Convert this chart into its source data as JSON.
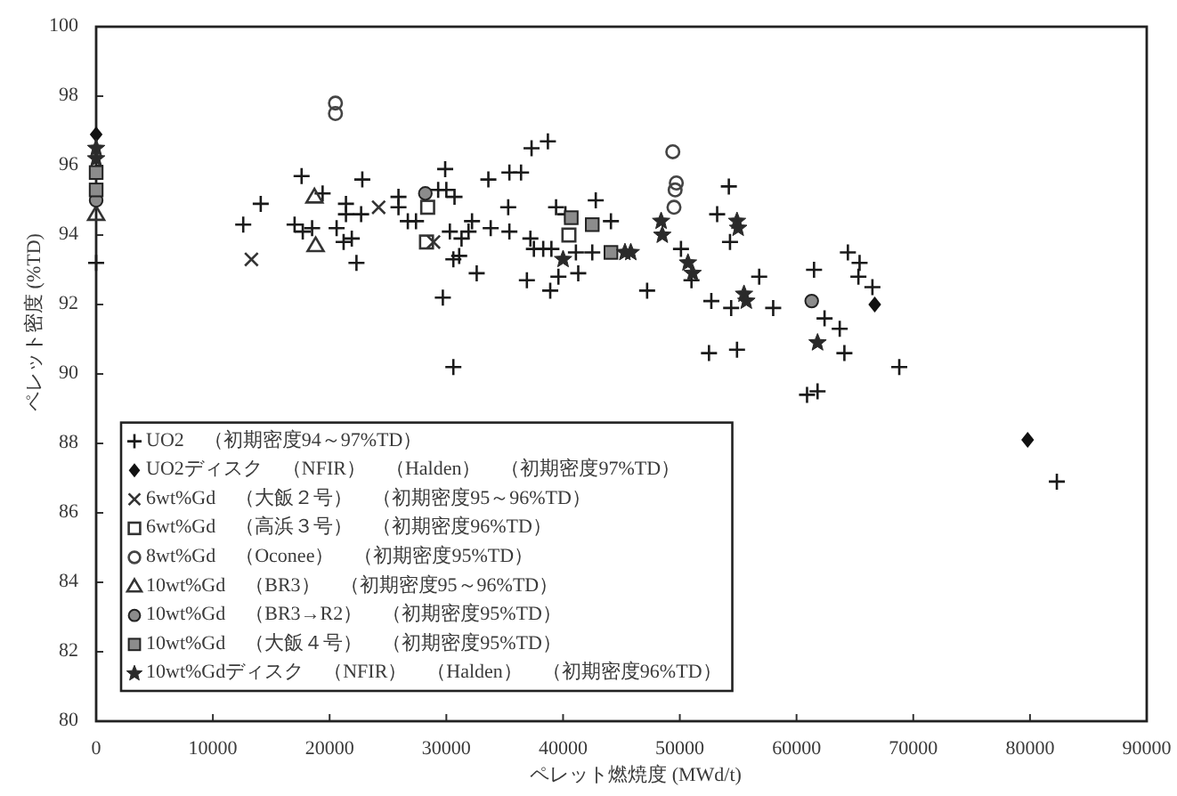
{
  "chart_data": {
    "type": "scatter",
    "xlabel": "ペレット燃焼度 (MWd/t)",
    "ylabel": "ペレット密度 (%TD)",
    "xlim": [
      0,
      90000
    ],
    "ylim": [
      80,
      100
    ],
    "xticks": [
      0,
      10000,
      20000,
      30000,
      40000,
      50000,
      60000,
      70000,
      80000,
      90000
    ],
    "yticks": [
      80,
      82,
      84,
      86,
      88,
      90,
      92,
      94,
      96,
      98,
      100
    ],
    "legend": "bottom left",
    "series": [
      {
        "name": "UO2　（初期密度94～97%TD）",
        "color": "#1a1a1a",
        "marker": "cross",
        "x": [
          0,
          12600,
          14100,
          17600,
          17000,
          17700,
          18500,
          19400,
          20600,
          21200,
          21900,
          21400,
          21400,
          22700,
          22300,
          22800,
          25900,
          25900,
          26700,
          27400,
          29300,
          30000,
          30700,
          29900,
          29700,
          30600,
          30300,
          31300,
          31100,
          30600,
          32200,
          31900,
          32600,
          33800,
          33600,
          35400,
          36400,
          35300,
          35400,
          37300,
          38700,
          37200,
          36900,
          38900,
          39600,
          41300,
          39400,
          42800,
          44100,
          41100,
          42500,
          37500,
          38300,
          39000,
          40200,
          50100,
          54200,
          53200,
          54300,
          47200,
          52700,
          56800,
          54400,
          58000,
          52500,
          54900,
          61500,
          62400,
          63700,
          64100,
          60900,
          61800,
          64400,
          65400,
          65300,
          66500,
          68800,
          82300,
          51000
        ],
        "values": [
          93.2,
          94.3,
          94.9,
          95.7,
          94.3,
          94.1,
          94.2,
          95.2,
          94.2,
          93.8,
          93.9,
          94.9,
          94.6,
          94.6,
          93.2,
          95.6,
          95.1,
          94.8,
          94.4,
          94.4,
          95.3,
          95.3,
          95.1,
          95.9,
          92.2,
          90.2,
          94.1,
          93.9,
          93.4,
          93.3,
          94.4,
          94.1,
          92.9,
          94.2,
          95.6,
          95.8,
          95.8,
          94.8,
          94.1,
          96.5,
          96.7,
          93.9,
          92.7,
          92.4,
          92.8,
          92.9,
          94.8,
          95.0,
          94.4,
          93.5,
          93.5,
          93.6,
          93.6,
          93.6,
          94.6,
          93.6,
          95.4,
          94.6,
          93.8,
          92.4,
          92.1,
          92.8,
          91.9,
          91.9,
          90.6,
          90.7,
          93.0,
          91.6,
          91.3,
          90.6,
          89.4,
          89.5,
          93.5,
          93.2,
          92.8,
          92.5,
          90.2,
          86.9,
          92.7
        ]
      },
      {
        "name": "UO2ディスク　（NFIR）　（Halden）　（初期密度97%TD）",
        "color": "#111111",
        "marker": "diamond",
        "x": [
          0,
          66700,
          79800
        ],
        "values": [
          96.9,
          92.0,
          88.1
        ]
      },
      {
        "name": "6wt%Gd　（大飯２号）　（初期密度95～96%TD）",
        "color": "#333333",
        "marker": "x",
        "x": [
          13300,
          24200,
          28900
        ],
        "values": [
          93.3,
          94.8,
          93.8
        ]
      },
      {
        "name": "6wt%Gd　（高浜３号）　（初期密度96%TD）",
        "color": "#333333",
        "marker": "square-open",
        "x": [
          28400,
          28300,
          40500
        ],
        "values": [
          94.8,
          93.8,
          94.0
        ]
      },
      {
        "name": "8wt%Gd　（Oconee）　（初期密度95%TD）",
        "color": "#444444",
        "marker": "circle-open",
        "x": [
          20500,
          20500,
          49400,
          49700,
          49600,
          49500
        ],
        "values": [
          97.8,
          97.5,
          96.4,
          95.5,
          95.3,
          94.8
        ]
      },
      {
        "name": "10wt%Gd　（BR3）　（初期密度95～96%TD）",
        "color": "#333333",
        "marker": "triangle-open",
        "x": [
          0,
          18700,
          18800
        ],
        "values": [
          94.6,
          95.1,
          93.7
        ]
      },
      {
        "name": "10wt%Gd　（BR3→R2）　（初期密度95%TD）",
        "color": "#8c8c8c",
        "marker": "circle",
        "x": [
          0,
          28200,
          61300
        ],
        "values": [
          95.0,
          95.2,
          92.1
        ]
      },
      {
        "name": "10wt%Gd　（大飯４号）　（初期密度95%TD）",
        "color": "#8c8c8c",
        "marker": "square",
        "x": [
          0,
          0,
          40700,
          42500,
          44100
        ],
        "values": [
          95.8,
          95.3,
          94.5,
          94.3,
          93.5
        ]
      },
      {
        "name": "10wt%Gdディスク　（NFIR）　（Halden）　（初期密度96%TD）",
        "color": "#2a2a2a",
        "marker": "star",
        "x": [
          0,
          0,
          40000,
          45300,
          45800,
          48400,
          48500,
          50700,
          51100,
          54900,
          55000,
          55500,
          55700,
          61800
        ],
        "values": [
          96.5,
          96.2,
          93.3,
          93.5,
          93.5,
          94.4,
          94.0,
          93.2,
          92.9,
          94.4,
          94.2,
          92.3,
          92.1,
          90.9
        ]
      }
    ]
  }
}
